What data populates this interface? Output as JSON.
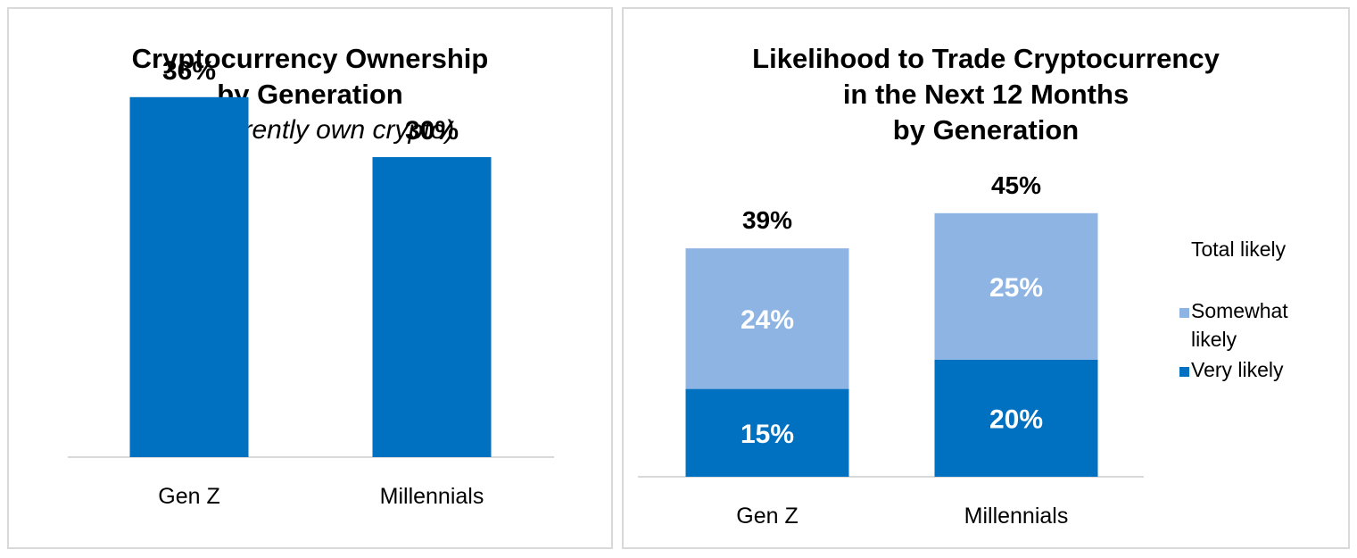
{
  "chart_data": [
    {
      "type": "bar",
      "title": "Cryptocurrency Ownership by Generation",
      "subtitle": "(% currently own crypto)",
      "categories": [
        "Gen Z",
        "Millennials"
      ],
      "values": [
        36,
        30
      ],
      "data_labels": [
        "36%",
        "30%"
      ],
      "ylim": [
        0,
        40
      ],
      "grid": false,
      "colors": {
        "bar": "#0070c0"
      }
    },
    {
      "type": "bar",
      "stacked": true,
      "title": "Likelihood to Trade Cryptocurrency in the Next 12 Months by Generation",
      "categories": [
        "Gen Z",
        "Millennials"
      ],
      "series": [
        {
          "name": "Very likely",
          "values": [
            15,
            20
          ],
          "labels": [
            "15%",
            "20%"
          ],
          "color": "#0070c0"
        },
        {
          "name": "Somewhat likely",
          "values": [
            24,
            25
          ],
          "labels": [
            "24%",
            "25%"
          ],
          "color": "#8eb4e3"
        }
      ],
      "totals": [
        39,
        45
      ],
      "total_labels": [
        "39%",
        "45%"
      ],
      "legend_header": "Total likely",
      "legend_position": "right",
      "ylim": [
        0,
        50
      ],
      "grid": false
    }
  ]
}
